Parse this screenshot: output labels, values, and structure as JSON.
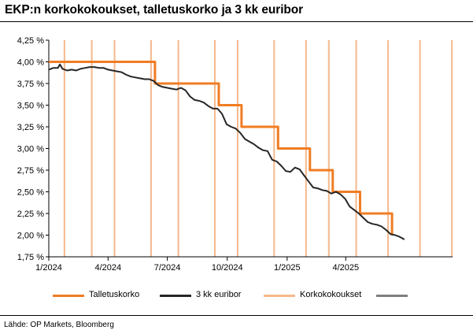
{
  "title": "EKP:n korkokokoukset, talletuskorko ja 3 kk euribor",
  "source": "Lähde: OP Markets, Bloomberg",
  "colors": {
    "deposit": "#f07c23",
    "euribor": "#262626",
    "meetings": "#f5b88c",
    "extra": "#7f7f7f"
  },
  "legend": [
    {
      "label": "Talletuskorko",
      "color": "#f07c23"
    },
    {
      "label": "3 kk euribor",
      "color": "#262626"
    },
    {
      "label": "Korkokokoukset",
      "color": "#f5b88c"
    },
    {
      "label": "",
      "color": "#7f7f7f"
    }
  ],
  "chart_data": {
    "type": "line",
    "x_start": "2024-01-01",
    "x_end": "2025-09-12",
    "ylim": [
      1.75,
      4.25
    ],
    "yticks": [
      "4,25 %",
      "4,00 %",
      "3,75 %",
      "3,50 %",
      "3,25 %",
      "3,00 %",
      "2,75 %",
      "2,50 %",
      "2,25 %",
      "2,00 %",
      "1,75 %"
    ],
    "xticks": [
      {
        "date": "2024-01-01",
        "label": "1/2024"
      },
      {
        "date": "2024-04-01",
        "label": "4/2024"
      },
      {
        "date": "2024-07-01",
        "label": "7/2024"
      },
      {
        "date": "2024-10-01",
        "label": "10/2024"
      },
      {
        "date": "2025-01-01",
        "label": "1/2025"
      },
      {
        "date": "2025-04-01",
        "label": "4/2025"
      }
    ],
    "grid": false,
    "legend_position": "bottom",
    "series": [
      {
        "name": "Talletuskorko",
        "kind": "step",
        "points": [
          [
            "2024-01-01",
            4.0
          ],
          [
            "2024-06-12",
            4.0
          ],
          [
            "2024-06-12",
            3.75
          ],
          [
            "2024-09-18",
            3.75
          ],
          [
            "2024-09-18",
            3.5
          ],
          [
            "2024-10-23",
            3.5
          ],
          [
            "2024-10-23",
            3.25
          ],
          [
            "2024-12-18",
            3.25
          ],
          [
            "2024-12-18",
            3.0
          ],
          [
            "2025-02-05",
            3.0
          ],
          [
            "2025-02-05",
            2.75
          ],
          [
            "2025-03-12",
            2.75
          ],
          [
            "2025-03-12",
            2.5
          ],
          [
            "2025-04-23",
            2.5
          ],
          [
            "2025-04-23",
            2.25
          ],
          [
            "2025-06-11",
            2.25
          ],
          [
            "2025-06-11",
            2.0
          ]
        ]
      },
      {
        "name": "3 kk euribor",
        "kind": "line",
        "points": [
          [
            "2024-01-01",
            3.91
          ],
          [
            "2024-01-08",
            3.93
          ],
          [
            "2024-01-15",
            3.93
          ],
          [
            "2024-01-18",
            3.97
          ],
          [
            "2024-01-22",
            3.92
          ],
          [
            "2024-01-29",
            3.9
          ],
          [
            "2024-02-05",
            3.91
          ],
          [
            "2024-02-12",
            3.9
          ],
          [
            "2024-02-19",
            3.92
          ],
          [
            "2024-02-26",
            3.93
          ],
          [
            "2024-03-04",
            3.94
          ],
          [
            "2024-03-11",
            3.94
          ],
          [
            "2024-03-18",
            3.93
          ],
          [
            "2024-03-25",
            3.93
          ],
          [
            "2024-04-01",
            3.91
          ],
          [
            "2024-04-08",
            3.9
          ],
          [
            "2024-04-15",
            3.89
          ],
          [
            "2024-04-22",
            3.88
          ],
          [
            "2024-04-29",
            3.85
          ],
          [
            "2024-05-06",
            3.83
          ],
          [
            "2024-05-13",
            3.82
          ],
          [
            "2024-05-20",
            3.81
          ],
          [
            "2024-05-27",
            3.8
          ],
          [
            "2024-06-03",
            3.8
          ],
          [
            "2024-06-10",
            3.78
          ],
          [
            "2024-06-17",
            3.73
          ],
          [
            "2024-06-24",
            3.71
          ],
          [
            "2024-07-01",
            3.7
          ],
          [
            "2024-07-08",
            3.69
          ],
          [
            "2024-07-15",
            3.68
          ],
          [
            "2024-07-22",
            3.7
          ],
          [
            "2024-07-29",
            3.67
          ],
          [
            "2024-08-05",
            3.6
          ],
          [
            "2024-08-12",
            3.56
          ],
          [
            "2024-08-19",
            3.55
          ],
          [
            "2024-08-26",
            3.53
          ],
          [
            "2024-09-02",
            3.49
          ],
          [
            "2024-09-09",
            3.46
          ],
          [
            "2024-09-16",
            3.46
          ],
          [
            "2024-09-23",
            3.4
          ],
          [
            "2024-09-30",
            3.28
          ],
          [
            "2024-10-07",
            3.25
          ],
          [
            "2024-10-14",
            3.23
          ],
          [
            "2024-10-21",
            3.18
          ],
          [
            "2024-10-28",
            3.11
          ],
          [
            "2024-11-04",
            3.08
          ],
          [
            "2024-11-11",
            3.05
          ],
          [
            "2024-11-18",
            3.01
          ],
          [
            "2024-11-25",
            2.98
          ],
          [
            "2024-12-02",
            2.97
          ],
          [
            "2024-12-09",
            2.87
          ],
          [
            "2024-12-16",
            2.85
          ],
          [
            "2024-12-23",
            2.8
          ],
          [
            "2024-12-30",
            2.74
          ],
          [
            "2025-01-06",
            2.73
          ],
          [
            "2025-01-13",
            2.78
          ],
          [
            "2025-01-20",
            2.76
          ],
          [
            "2025-01-27",
            2.69
          ],
          [
            "2025-02-03",
            2.62
          ],
          [
            "2025-02-10",
            2.55
          ],
          [
            "2025-02-17",
            2.54
          ],
          [
            "2025-02-24",
            2.52
          ],
          [
            "2025-03-03",
            2.51
          ],
          [
            "2025-03-10",
            2.48
          ],
          [
            "2025-03-17",
            2.5
          ],
          [
            "2025-03-24",
            2.47
          ],
          [
            "2025-03-31",
            2.42
          ],
          [
            "2025-04-07",
            2.33
          ],
          [
            "2025-04-14",
            2.29
          ],
          [
            "2025-04-21",
            2.25
          ],
          [
            "2025-04-28",
            2.2
          ],
          [
            "2025-05-05",
            2.15
          ],
          [
            "2025-05-12",
            2.13
          ],
          [
            "2025-05-19",
            2.12
          ],
          [
            "2025-05-26",
            2.1
          ],
          [
            "2025-06-02",
            2.06
          ],
          [
            "2025-06-09",
            2.01
          ],
          [
            "2025-06-16",
            2.0
          ],
          [
            "2025-06-23",
            1.98
          ],
          [
            "2025-06-30",
            1.95
          ]
        ]
      }
    ],
    "meeting_dates": [
      "2024-01-25",
      "2024-03-07",
      "2024-04-11",
      "2024-06-06",
      "2024-07-18",
      "2024-09-12",
      "2024-10-17",
      "2024-12-12",
      "2025-01-30",
      "2025-03-06",
      "2025-04-17",
      "2025-06-05",
      "2025-07-24",
      "2025-09-11"
    ]
  }
}
